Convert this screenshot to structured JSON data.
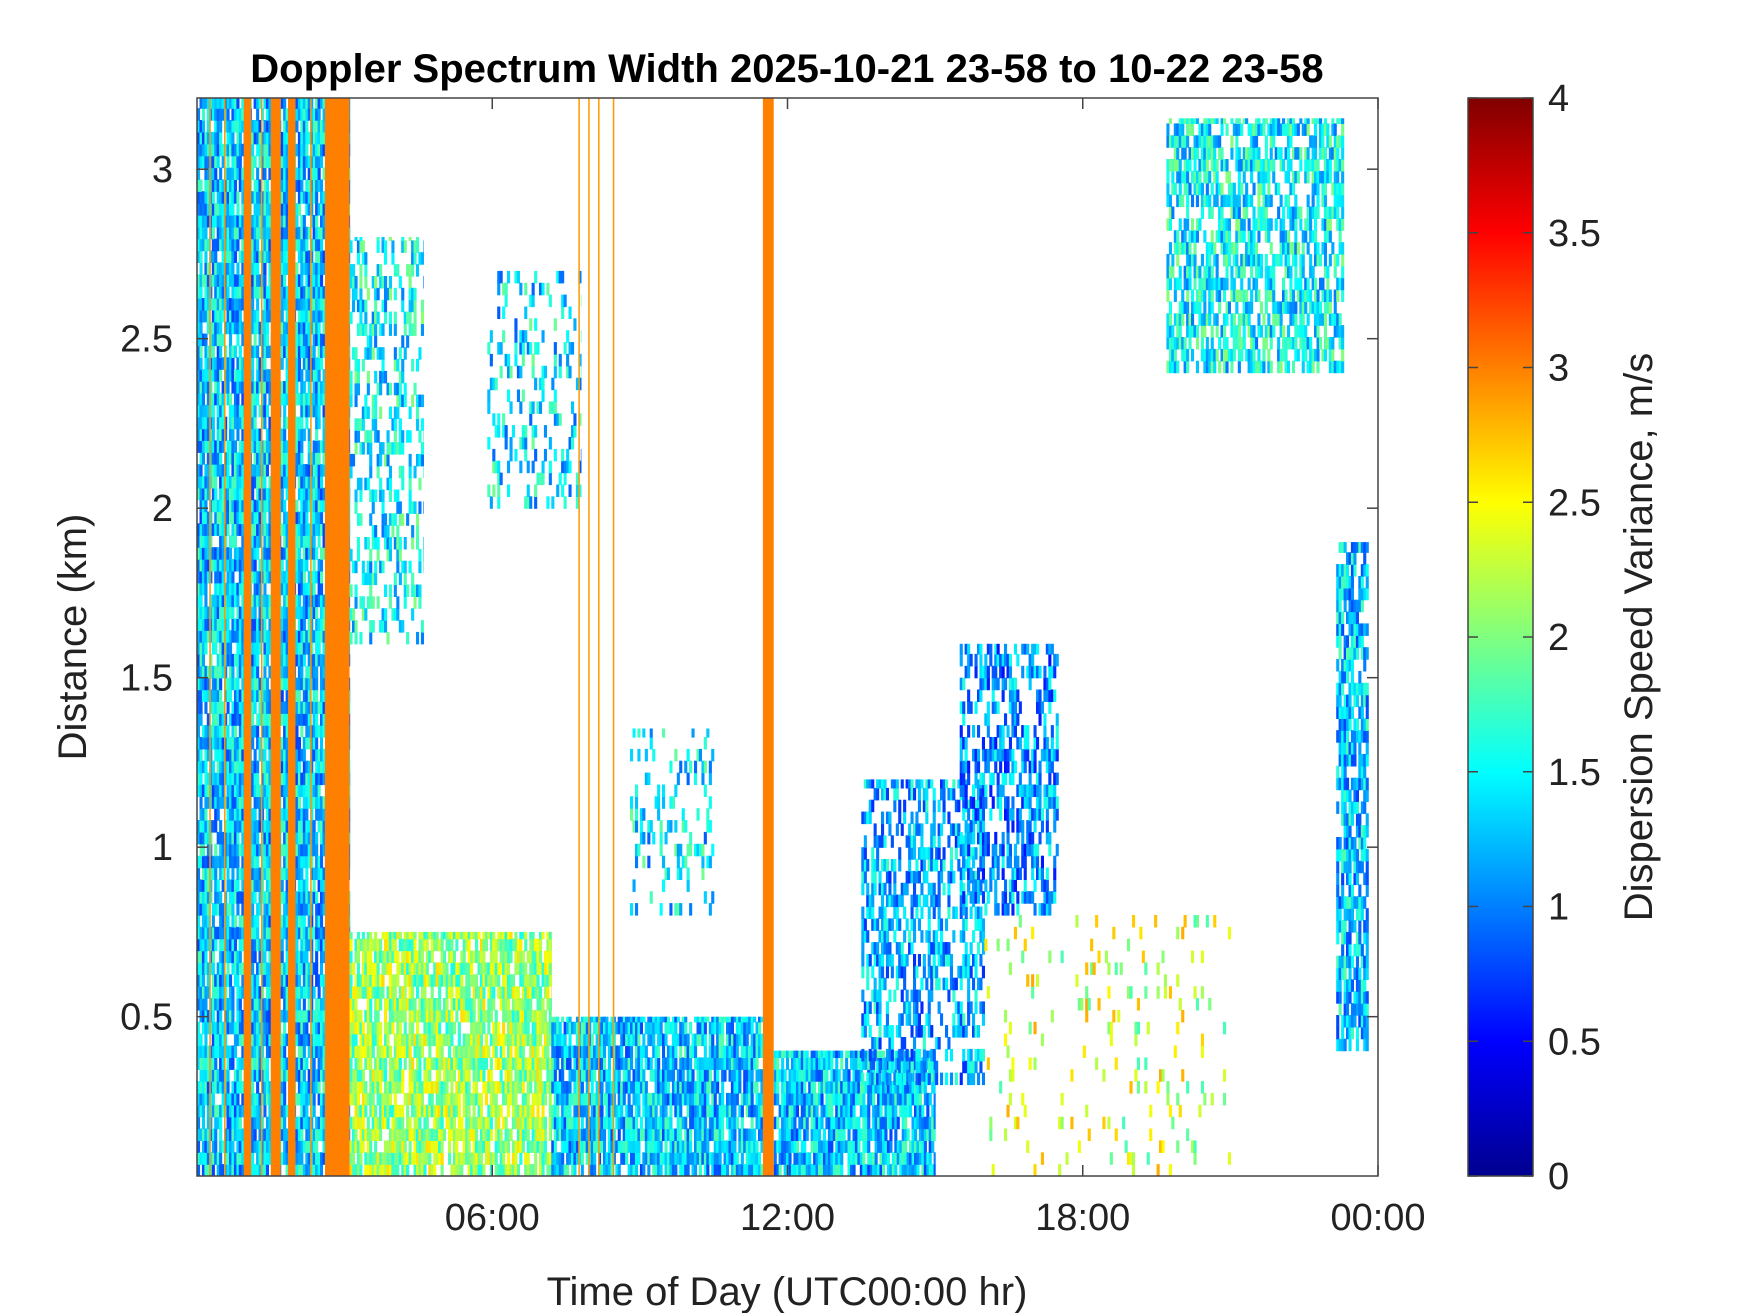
{
  "chart_data": {
    "type": "heatmap",
    "title": "Doppler Spectrum Width 2025-10-21 23-58 to 10-22 23-58",
    "xlabel": "Time of Day (UTC00:00 hr)",
    "ylabel": "Distance (km)",
    "x_ticks": [
      {
        "value": 6,
        "label": "06:00"
      },
      {
        "value": 12,
        "label": "12:00"
      },
      {
        "value": 18,
        "label": "18:00"
      },
      {
        "value": 24,
        "label": "00:00"
      }
    ],
    "y_ticks": [
      {
        "value": 0.5,
        "label": "0.5"
      },
      {
        "value": 1,
        "label": "1"
      },
      {
        "value": 1.5,
        "label": "1.5"
      },
      {
        "value": 2,
        "label": "2"
      },
      {
        "value": 2.5,
        "label": "2.5"
      },
      {
        "value": 3,
        "label": "3"
      }
    ],
    "xlim": [
      0,
      24
    ],
    "ylim": [
      0.03,
      3.21
    ],
    "colorbar": {
      "label": "Dispersion Speed Variance, m/s",
      "range": [
        0,
        4
      ],
      "colormap": "jet",
      "ticks": [
        {
          "value": 0,
          "label": "0"
        },
        {
          "value": 0.5,
          "label": "0.5"
        },
        {
          "value": 1,
          "label": "1"
        },
        {
          "value": 1.5,
          "label": "1.5"
        },
        {
          "value": 2,
          "label": "2"
        },
        {
          "value": 2.5,
          "label": "2.5"
        },
        {
          "value": 3,
          "label": "3"
        },
        {
          "value": 3.5,
          "label": "3.5"
        },
        {
          "value": 4,
          "label": "4"
        }
      ]
    },
    "saturated_bands": [
      {
        "x_start": 0.95,
        "x_end": 1.1,
        "value": 3.0
      },
      {
        "x_start": 1.5,
        "x_end": 1.7,
        "value": 3.0
      },
      {
        "x_start": 1.85,
        "x_end": 2.0,
        "value": 3.0
      },
      {
        "x_start": 2.6,
        "x_end": 3.1,
        "value": 3.0
      },
      {
        "x_start": 11.5,
        "x_end": 11.72,
        "value": 3.0
      }
    ],
    "thin_lines": [
      0.25,
      0.55,
      1.3,
      2.3,
      7.75,
      7.95,
      8.15,
      8.45
    ],
    "regions": [
      {
        "x": [
          0,
          3.1
        ],
        "y": [
          0.03,
          3.21
        ],
        "value": 1.3,
        "density": 0.85
      },
      {
        "x": [
          3.1,
          4.6
        ],
        "y": [
          1.6,
          2.8
        ],
        "value": 1.5,
        "density": 0.35
      },
      {
        "x": [
          3.1,
          7.2
        ],
        "y": [
          0.03,
          0.75
        ],
        "value": 2.1,
        "density": 0.8
      },
      {
        "x": [
          5.9,
          7.8
        ],
        "y": [
          2.0,
          2.7
        ],
        "value": 1.4,
        "density": 0.25
      },
      {
        "x": [
          7.2,
          11.5
        ],
        "y": [
          0.03,
          0.5
        ],
        "value": 1.3,
        "density": 0.85
      },
      {
        "x": [
          8.8,
          10.5
        ],
        "y": [
          0.8,
          1.35
        ],
        "value": 1.4,
        "density": 0.2
      },
      {
        "x": [
          11.72,
          15.0
        ],
        "y": [
          0.03,
          0.4
        ],
        "value": 1.3,
        "density": 0.85
      },
      {
        "x": [
          13.5,
          16.0
        ],
        "y": [
          0.3,
          1.2
        ],
        "value": 1.2,
        "density": 0.5
      },
      {
        "x": [
          15.5,
          17.5
        ],
        "y": [
          0.8,
          1.6
        ],
        "value": 1.1,
        "density": 0.5
      },
      {
        "x": [
          16.0,
          21.0
        ],
        "y": [
          0.03,
          0.8
        ],
        "value": 2.3,
        "density": 0.08
      },
      {
        "x": [
          19.7,
          23.3
        ],
        "y": [
          2.4,
          3.15
        ],
        "value": 1.5,
        "density": 0.6
      },
      {
        "x": [
          23.15,
          23.8
        ],
        "y": [
          0.4,
          1.9
        ],
        "value": 1.3,
        "density": 0.75
      }
    ]
  }
}
